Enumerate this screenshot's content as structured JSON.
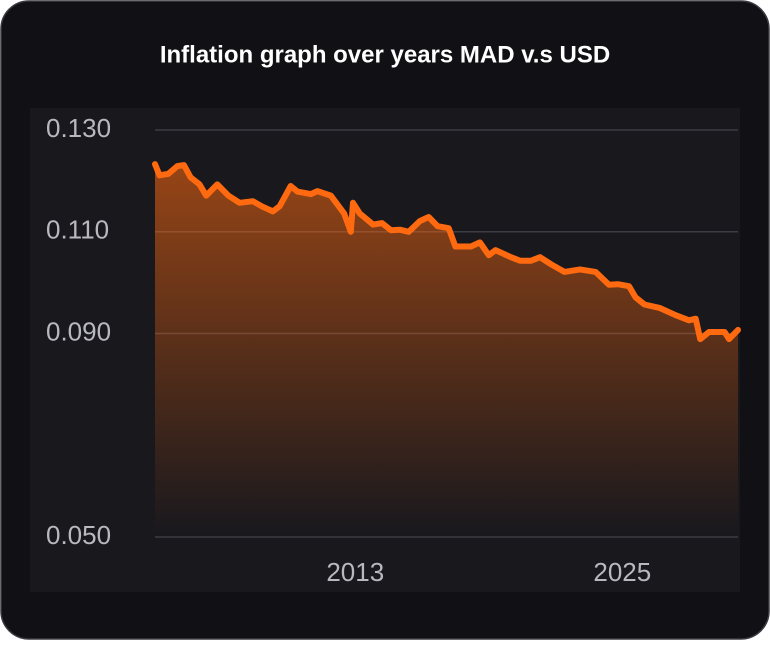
{
  "chart_data": {
    "type": "line",
    "title": "Inflation graph over years MAD v.s USD",
    "x": [
      2004.0,
      2004.2,
      2004.6,
      2005.0,
      2005.3,
      2005.6,
      2006.0,
      2006.3,
      2006.8,
      2007.3,
      2007.8,
      2008.4,
      2008.8,
      2009.3,
      2009.6,
      2010.1,
      2010.4,
      2011.0,
      2011.3,
      2011.9,
      2012.5,
      2012.8,
      2012.9,
      2013.2,
      2013.8,
      2014.2,
      2014.6,
      2015.0,
      2015.4,
      2015.9,
      2016.3,
      2016.7,
      2017.2,
      2017.5,
      2018.2,
      2018.6,
      2019.0,
      2019.3,
      2020.0,
      2020.4,
      2020.9,
      2021.3,
      2021.8,
      2022.4,
      2023.1,
      2023.8,
      2024.4,
      2024.8,
      2025.3,
      2025.6,
      2026.0,
      2026.7,
      2027.4,
      2028.0,
      2028.3,
      2028.5,
      2028.9,
      2029.6,
      2029.8,
      2030.2
    ],
    "series": [
      {
        "color": "#ff6a10",
        "values": [
          0.1233,
          0.1211,
          0.1214,
          0.1229,
          0.1231,
          0.1207,
          0.1193,
          0.1171,
          0.1193,
          0.1171,
          0.1157,
          0.116,
          0.115,
          0.114,
          0.115,
          0.119,
          0.1179,
          0.1174,
          0.118,
          0.1171,
          0.1136,
          0.11,
          0.1157,
          0.1136,
          0.1114,
          0.1117,
          0.1103,
          0.1104,
          0.11,
          0.1121,
          0.1129,
          0.1111,
          0.1107,
          0.1071,
          0.1071,
          0.1079,
          0.1054,
          0.1064,
          0.105,
          0.1043,
          0.1043,
          0.105,
          0.1036,
          0.1021,
          0.1026,
          0.1021,
          0.0996,
          0.0997,
          0.0993,
          0.0971,
          0.0957,
          0.095,
          0.0936,
          0.0926,
          0.0929,
          0.0889,
          0.0903,
          0.0903,
          0.0889,
          0.0907
        ]
      }
    ],
    "xlim": [
      2004,
      2030.2
    ],
    "xticks": [
      2013,
      2025
    ],
    "ylim": [
      0.05,
      0.13
    ],
    "yticks": [
      {
        "value": 0.13,
        "label": "0.130"
      },
      {
        "value": 0.11,
        "label": "0.110"
      },
      {
        "value": 0.09,
        "label": "0.090"
      },
      {
        "value": 0.05,
        "label": "0.050"
      }
    ],
    "grid": true
  }
}
